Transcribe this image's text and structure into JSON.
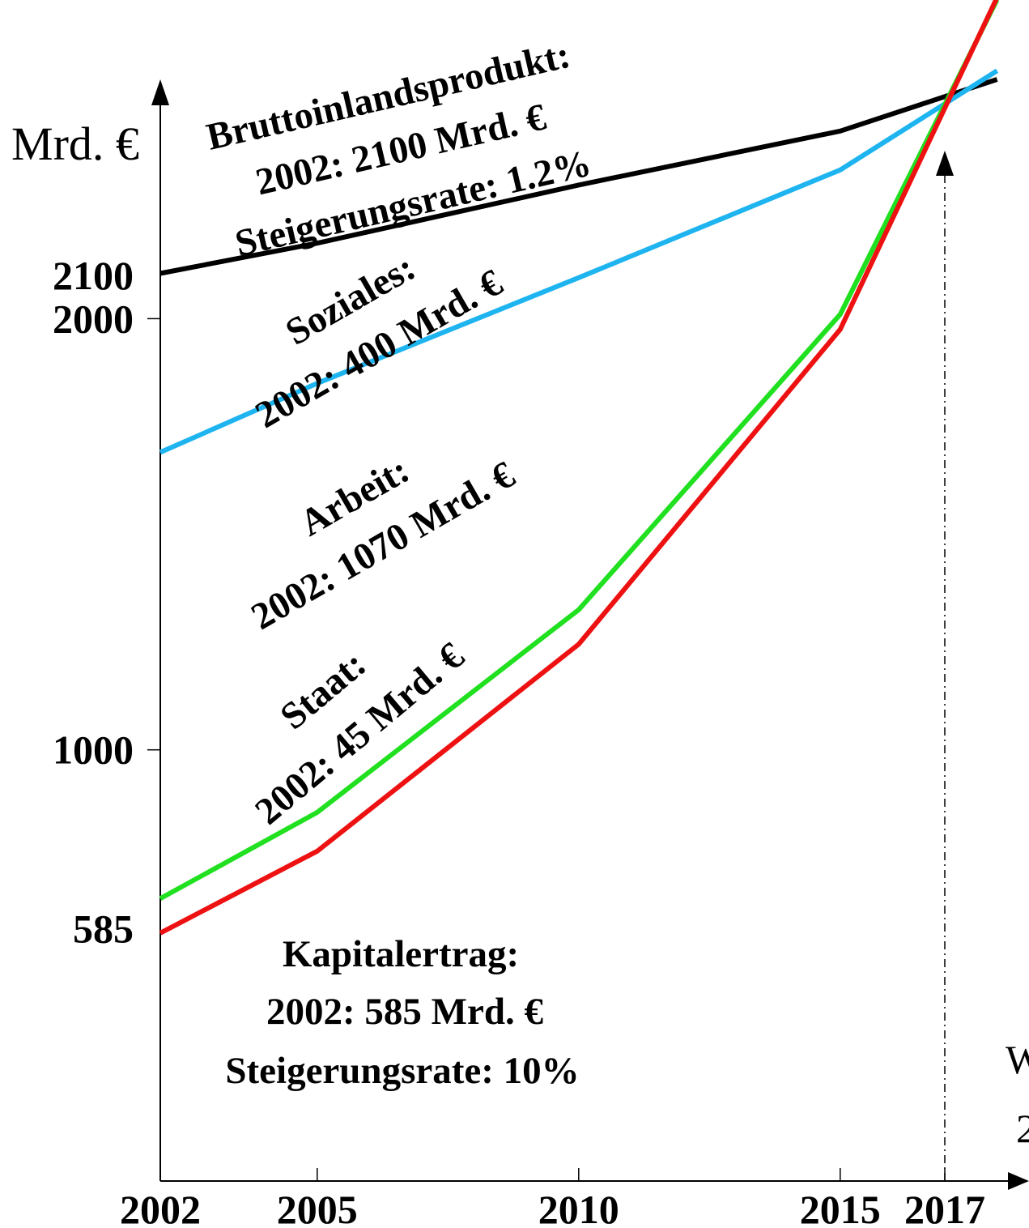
{
  "chart_data": {
    "type": "line",
    "y_unit_label": "Mrd. €",
    "y_ticks": [
      {
        "label": "2100",
        "value": 2100
      },
      {
        "label": "2000",
        "value": 2000
      },
      {
        "label": "1000",
        "value": 1000
      },
      {
        "label": "585",
        "value": 585
      }
    ],
    "x_ticks": [
      {
        "label": "2002",
        "value": 2002
      },
      {
        "label": "2005",
        "value": 2005
      },
      {
        "label": "2010",
        "value": 2010
      },
      {
        "label": "2015",
        "value": 2015
      },
      {
        "label": "2017",
        "value": 2017
      }
    ],
    "xlim": [
      2002,
      2018
    ],
    "ylim": [
      0,
      2600
    ],
    "marker_year": 2017,
    "series": [
      {
        "color": "#000000",
        "x": [
          2002,
          2005,
          2010,
          2015,
          2018
        ],
        "y": [
          2105,
          2175,
          2310,
          2435,
          2555
        ]
      },
      {
        "color": "#1eb4f0",
        "x": [
          2002,
          2005,
          2010,
          2015,
          2018
        ],
        "y": [
          1690,
          1850,
          2095,
          2345,
          2575
        ]
      },
      {
        "color": "#20e020",
        "x": [
          2002,
          2005,
          2010,
          2015,
          2018
        ],
        "y": [
          655,
          855,
          1325,
          2010,
          2740
        ]
      },
      {
        "color": "#ee1111",
        "x": [
          2002,
          2005,
          2010,
          2015,
          2018
        ],
        "y": [
          575,
          765,
          1245,
          1975,
          2745
        ]
      }
    ],
    "annotations": [
      {
        "id": "bip",
        "lines": [
          "Bruttoinlandsprodukt:",
          "2002: 2100 Mrd. €",
          "Steigerungsrate: 1.2%"
        ]
      },
      {
        "id": "soziales",
        "lines": [
          "Soziales:",
          "2002: 400 Mrd. €"
        ]
      },
      {
        "id": "arbeit",
        "lines": [
          "Arbeit:",
          "2002: 1070 Mrd. €"
        ]
      },
      {
        "id": "staat",
        "lines": [
          "Staat:",
          "2002: 45 Mrd. €"
        ]
      },
      {
        "id": "kapital",
        "lines": [
          "Kapitalertrag:",
          "2002: 585 Mrd. €",
          "Steigerungsrate: 10%"
        ]
      }
    ],
    "clipped_text": [
      "W",
      "2"
    ]
  }
}
